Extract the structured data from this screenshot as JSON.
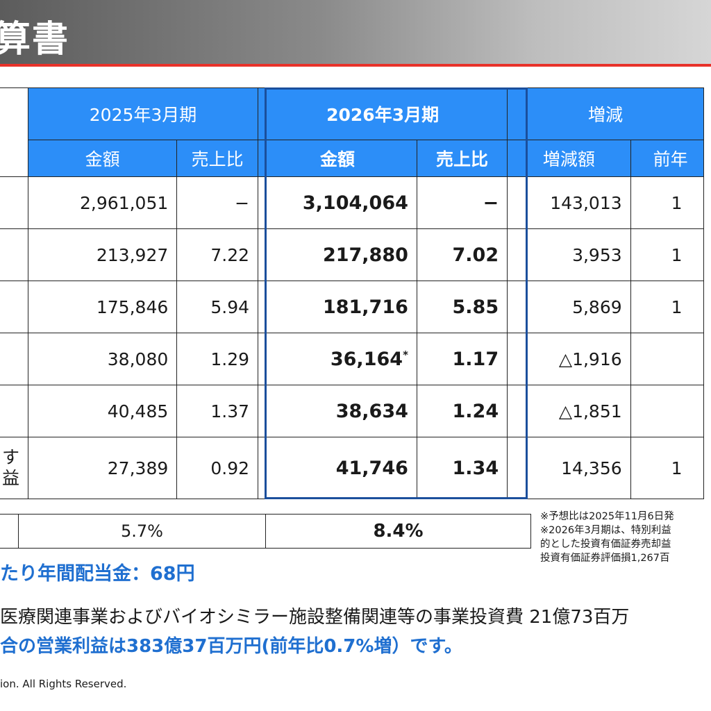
{
  "header": {
    "title": "算書"
  },
  "table": {
    "periods": {
      "prev": "2025年3月期",
      "curr": "2026年3月期",
      "change": "増減"
    },
    "sub": {
      "prev_amount": "金額",
      "prev_ratio": "売上比",
      "curr_amount": "金額",
      "curr_ratio": "売上比",
      "change_amount": "増減額",
      "change_yoy": "前年"
    },
    "rows": [
      {
        "label1": "",
        "label2": "",
        "prev_amount": "2,961,051",
        "prev_ratio": "−",
        "curr_amount": "3,104,064",
        "curr_mark": "",
        "curr_ratio": "−",
        "change_amount": "143,013",
        "change_yoy": "1"
      },
      {
        "label1": "",
        "label2": "",
        "prev_amount": "213,927",
        "prev_ratio": "7.22",
        "curr_amount": "217,880",
        "curr_mark": "",
        "curr_ratio": "7.02",
        "change_amount": "3,953",
        "change_yoy": "1"
      },
      {
        "label1": "",
        "label2": "",
        "prev_amount": "175,846",
        "prev_ratio": "5.94",
        "curr_amount": "181,716",
        "curr_mark": "",
        "curr_ratio": "5.85",
        "change_amount": "5,869",
        "change_yoy": "1"
      },
      {
        "label1": "",
        "label2": "",
        "prev_amount": "38,080",
        "prev_ratio": "1.29",
        "curr_amount": "36,164",
        "curr_mark": "*",
        "curr_ratio": "1.17",
        "change_amount": "△1,916",
        "change_yoy": ""
      },
      {
        "label1": "",
        "label2": "",
        "prev_amount": "40,485",
        "prev_ratio": "1.37",
        "curr_amount": "38,634",
        "curr_mark": "",
        "curr_ratio": "1.24",
        "change_amount": "△1,851",
        "change_yoy": ""
      },
      {
        "label1": "す",
        "label2": "益",
        "prev_amount": "27,389",
        "prev_ratio": "0.92",
        "curr_amount": "41,746",
        "curr_mark": "",
        "curr_ratio": "1.34",
        "change_amount": "14,356",
        "change_yoy": "1"
      }
    ],
    "margin": {
      "prev": "5.7%",
      "curr": "8.4%"
    }
  },
  "notes": [
    "※予想比は2025年11月6日発",
    "※2026年3月期は、特別利益",
    "的とした投資有価証券売却益",
    "投資有価証券評価損1,267百"
  ],
  "dividend": "たり年間配当金：68円",
  "body": {
    "line1": "医療関連事業およびバイオシミラー施設整備関連等の事業投資費 21億73百万",
    "line2": "合の営業利益は383億37百万円(前年比0.7%増）です。"
  },
  "footer": {
    "copyright": "ion. All Rights Reserved."
  }
}
